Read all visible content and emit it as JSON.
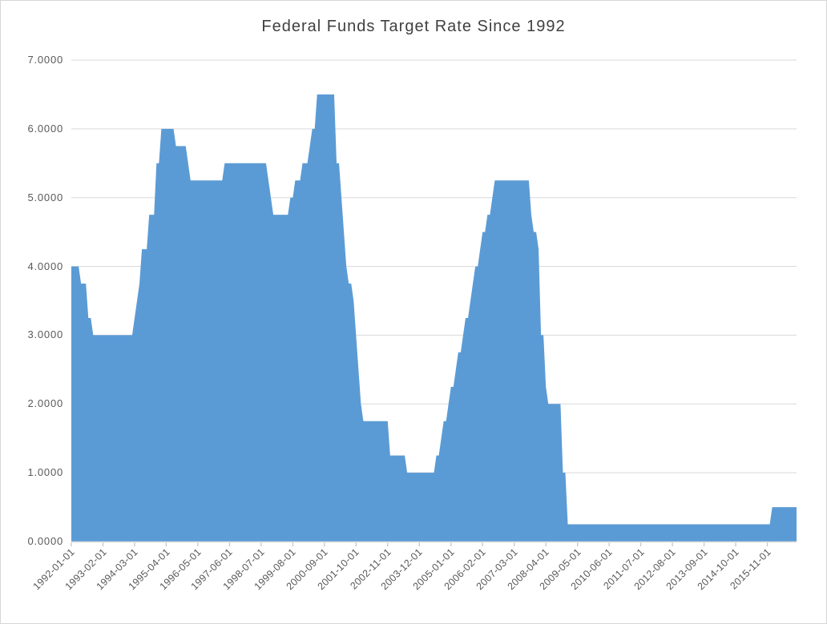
{
  "chart_data": {
    "type": "area",
    "title": "Federal Funds Target Rate Since 1992",
    "xlabel": "",
    "ylabel": "",
    "x_start": "1992-01-01",
    "x_end": "2016-11-01",
    "frequency": "monthly",
    "ylim": [
      0,
      7
    ],
    "grid": "horizontal",
    "legend": "none",
    "y_tick_labels": [
      "0.0000",
      "1.0000",
      "2.0000",
      "3.0000",
      "4.0000",
      "5.0000",
      "6.0000",
      "7.0000"
    ],
    "x_tick_labels": [
      "1992-01-01",
      "1993-02-01",
      "1994-03-01",
      "1995-04-01",
      "1996-05-01",
      "1997-06-01",
      "1998-07-01",
      "1999-08-01",
      "2000-09-01",
      "2001-10-01",
      "2002-11-01",
      "2003-12-01",
      "2005-01-01",
      "2006-02-01",
      "2007-03-01",
      "2008-04-01",
      "2009-05-01",
      "2010-06-01",
      "2011-07-01",
      "2012-08-01",
      "2013-09-01",
      "2014-10-01",
      "2015-11-01"
    ],
    "x_tick_interval_months": 13,
    "colors": {
      "area_fill": "#5B9BD5",
      "gridline": "#D9D9D9",
      "axis_line": "#D9D9D9",
      "axis_tick": "#C6C6C6",
      "axis_text": "#595959",
      "title_text": "#404040",
      "chart_border": "#D7D7D7",
      "background": "#FFFFFF"
    },
    "series": [
      {
        "name": "Federal Funds Target Rate",
        "encoding": "monthly_value_changes",
        "steps": [
          [
            "1992-01",
            4.0
          ],
          [
            "1992-05",
            3.75
          ],
          [
            "1992-08",
            3.25
          ],
          [
            "1992-10",
            3.0
          ],
          [
            "1994-03",
            3.25
          ],
          [
            "1994-04",
            3.5
          ],
          [
            "1994-05",
            3.75
          ],
          [
            "1994-06",
            4.25
          ],
          [
            "1994-09",
            4.75
          ],
          [
            "1994-12",
            5.5
          ],
          [
            "1995-02",
            6.0
          ],
          [
            "1995-08",
            5.75
          ],
          [
            "1996-01",
            5.5
          ],
          [
            "1996-02",
            5.25
          ],
          [
            "1997-04",
            5.5
          ],
          [
            "1998-10",
            5.25
          ],
          [
            "1998-11",
            5.0
          ],
          [
            "1998-12",
            4.75
          ],
          [
            "1999-07",
            5.0
          ],
          [
            "1999-09",
            5.25
          ],
          [
            "1999-12",
            5.5
          ],
          [
            "2000-03",
            5.75
          ],
          [
            "2000-04",
            6.0
          ],
          [
            "2000-06",
            6.5
          ],
          [
            "2001-02",
            5.5
          ],
          [
            "2001-04",
            5.0
          ],
          [
            "2001-05",
            4.5
          ],
          [
            "2001-06",
            4.0
          ],
          [
            "2001-07",
            3.75
          ],
          [
            "2001-09",
            3.5
          ],
          [
            "2001-10",
            3.0
          ],
          [
            "2001-11",
            2.5
          ],
          [
            "2001-12",
            2.0
          ],
          [
            "2002-01",
            1.75
          ],
          [
            "2002-12",
            1.25
          ],
          [
            "2003-07",
            1.0
          ],
          [
            "2004-07",
            1.25
          ],
          [
            "2004-09",
            1.5
          ],
          [
            "2004-10",
            1.75
          ],
          [
            "2004-12",
            2.0
          ],
          [
            "2005-01",
            2.25
          ],
          [
            "2005-03",
            2.5
          ],
          [
            "2005-04",
            2.75
          ],
          [
            "2005-06",
            3.0
          ],
          [
            "2005-07",
            3.25
          ],
          [
            "2005-09",
            3.5
          ],
          [
            "2005-10",
            3.75
          ],
          [
            "2005-11",
            4.0
          ],
          [
            "2006-01",
            4.25
          ],
          [
            "2006-02",
            4.5
          ],
          [
            "2006-04",
            4.75
          ],
          [
            "2006-06",
            5.0
          ],
          [
            "2006-07",
            5.25
          ],
          [
            "2007-10",
            4.75
          ],
          [
            "2007-11",
            4.5
          ],
          [
            "2008-01",
            4.25
          ],
          [
            "2008-02",
            3.0
          ],
          [
            "2008-04",
            2.25
          ],
          [
            "2008-05",
            2.0
          ],
          [
            "2008-11",
            1.0
          ],
          [
            "2009-01",
            0.25
          ],
          [
            "2016-01",
            0.5
          ]
        ]
      }
    ]
  }
}
